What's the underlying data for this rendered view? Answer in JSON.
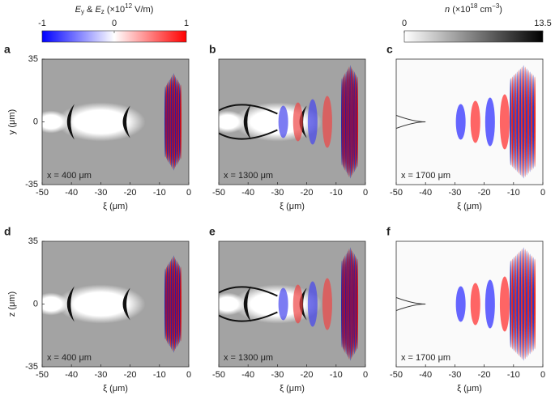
{
  "colorbars": [
    {
      "label": [
        "E",
        "y",
        " & ",
        "E",
        "z",
        " (×10",
        "12",
        " V/m)"
      ],
      "lim": [
        -1,
        1
      ],
      "ticks": [
        -1,
        0,
        1
      ]
    },
    {
      "label": [
        "n",
        " (×10",
        "18",
        " cm",
        "−3",
        ")"
      ],
      "lim": [
        0,
        13.5
      ],
      "ticks": [
        0,
        13.5
      ]
    }
  ],
  "chart_data": [
    {
      "type": "image",
      "label": "a",
      "annotation": "x = 400 μm",
      "xlabel": "ξ (μm)",
      "ylabel": "y (μm)",
      "xlim": [
        -50,
        0
      ],
      "xticks": [
        -50,
        -40,
        -30,
        -20,
        -10,
        0
      ],
      "ylim": [
        -35,
        35
      ],
      "yticks": [
        -35,
        0,
        35
      ]
    },
    {
      "type": "image",
      "label": "b",
      "annotation": "x = 1300 μm",
      "xlabel": "ξ (μm)",
      "xlim": [
        -50,
        0
      ],
      "xticks": [
        -50,
        -40,
        -30,
        -20,
        -10,
        0
      ]
    },
    {
      "type": "image",
      "label": "c",
      "annotation": "x = 1700 μm",
      "xlabel": "ξ (μm)",
      "xlim": [
        -50,
        0
      ],
      "xticks": [
        -50,
        -40,
        -30,
        -20,
        -10,
        0
      ]
    },
    {
      "type": "image",
      "label": "d",
      "annotation": "x = 400 μm",
      "xlabel": "ξ (μm)",
      "ylabel": "z (μm)",
      "xlim": [
        -50,
        0
      ],
      "xticks": [
        -50,
        -40,
        -30,
        -20,
        -10,
        0
      ],
      "ylim": [
        -35,
        35
      ],
      "yticks": [
        -35,
        0,
        35
      ]
    },
    {
      "type": "image",
      "label": "e",
      "annotation": "x = 1300 μm",
      "xlabel": "ξ (μm)",
      "xlim": [
        -50,
        0
      ],
      "xticks": [
        -50,
        -40,
        -30,
        -20,
        -10,
        0
      ]
    },
    {
      "type": "image",
      "label": "f",
      "annotation": "x = 1700 μm",
      "xlabel": "ξ (μm)",
      "xlim": [
        -50,
        0
      ],
      "xticks": [
        -50,
        -40,
        -30,
        -20,
        -10,
        0
      ]
    }
  ]
}
